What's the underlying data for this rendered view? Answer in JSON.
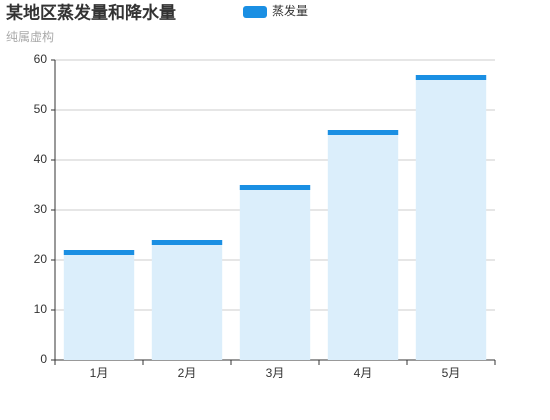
{
  "chart_data": {
    "type": "bar",
    "title": "某地区蒸发量和降水量",
    "subtitle": "纯属虚构",
    "categories": [
      "1月",
      "2月",
      "3月",
      "4月",
      "5月"
    ],
    "series": [
      {
        "name": "蒸发量",
        "color": "#1a8fe3",
        "values": [
          22,
          24,
          35,
          46,
          57
        ]
      }
    ],
    "ylim": [
      0,
      60
    ],
    "yticks": [
      0,
      10,
      20,
      30,
      40,
      50,
      60
    ],
    "grid": true
  }
}
